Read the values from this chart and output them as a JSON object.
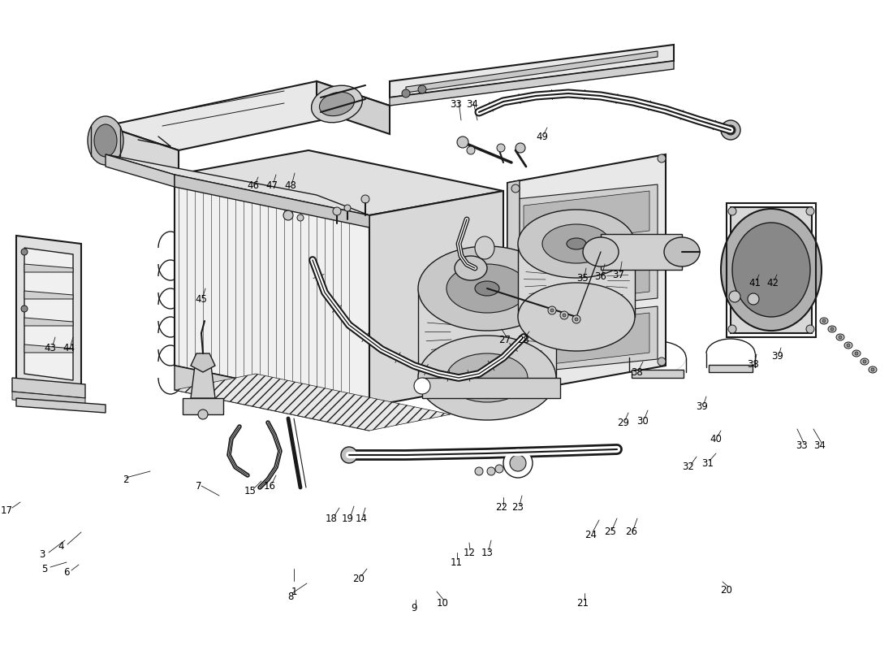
{
  "bg_color": "#ffffff",
  "fig_width": 11.0,
  "fig_height": 8.0,
  "dpi": 100,
  "line_color": "#1a1a1a",
  "text_color": "#000000",
  "font_size": 8.5,
  "labels": [
    [
      "1",
      362,
      728
    ],
    [
      "2",
      155,
      590
    ],
    [
      "3",
      52,
      683
    ],
    [
      "4",
      75,
      672
    ],
    [
      "5",
      55,
      700
    ],
    [
      "6",
      82,
      705
    ],
    [
      "7",
      245,
      598
    ],
    [
      "8",
      358,
      734
    ],
    [
      "9",
      510,
      748
    ],
    [
      "10",
      545,
      742
    ],
    [
      "11",
      562,
      692
    ],
    [
      "12",
      578,
      680
    ],
    [
      "13",
      600,
      680
    ],
    [
      "14",
      445,
      638
    ],
    [
      "15",
      308,
      605
    ],
    [
      "16",
      332,
      598
    ],
    [
      "17",
      8,
      628
    ],
    [
      "18",
      408,
      638
    ],
    [
      "19",
      428,
      638
    ],
    [
      "20",
      442,
      712
    ],
    [
      "20",
      895,
      726
    ],
    [
      "21",
      718,
      742
    ],
    [
      "22",
      618,
      625
    ],
    [
      "23",
      638,
      625
    ],
    [
      "24",
      728,
      658
    ],
    [
      "25",
      752,
      655
    ],
    [
      "26",
      778,
      655
    ],
    [
      "27",
      622,
      418
    ],
    [
      "28",
      645,
      418
    ],
    [
      "29",
      768,
      520
    ],
    [
      "30",
      792,
      518
    ],
    [
      "31",
      872,
      570
    ],
    [
      "32",
      848,
      575
    ],
    [
      "33",
      988,
      548
    ],
    [
      "34",
      1010,
      548
    ],
    [
      "33",
      562,
      128
    ],
    [
      "34",
      582,
      128
    ],
    [
      "35",
      718,
      342
    ],
    [
      "36",
      740,
      340
    ],
    [
      "37",
      762,
      338
    ],
    [
      "38",
      785,
      458
    ],
    [
      "38",
      928,
      448
    ],
    [
      "39",
      865,
      500
    ],
    [
      "39",
      958,
      438
    ],
    [
      "40",
      882,
      540
    ],
    [
      "41",
      930,
      348
    ],
    [
      "42",
      952,
      348
    ],
    [
      "43",
      62,
      428
    ],
    [
      "44",
      85,
      428
    ],
    [
      "45",
      248,
      368
    ],
    [
      "46",
      312,
      228
    ],
    [
      "47",
      335,
      228
    ],
    [
      "48",
      358,
      228
    ],
    [
      "49",
      668,
      168
    ]
  ]
}
